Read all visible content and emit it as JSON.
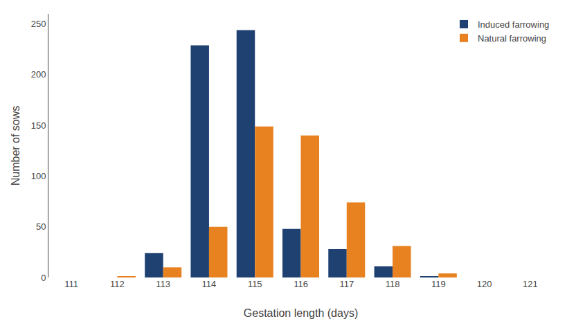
{
  "chart_data": {
    "type": "bar",
    "categories": [
      111,
      112,
      113,
      114,
      115,
      116,
      117,
      118,
      119,
      120,
      121
    ],
    "series": [
      {
        "name": "Induced farrowing",
        "color": "#1f4172",
        "values": [
          0,
          0,
          24,
          229,
          244,
          48,
          28,
          11,
          1,
          0,
          0
        ]
      },
      {
        "name": "Natural farrowing",
        "color": "#e88120",
        "values": [
          0,
          1,
          10,
          50,
          149,
          140,
          74,
          31,
          4,
          0,
          0
        ]
      }
    ],
    "xlabel": "Gestation length (days)",
    "ylabel": "Number of sows",
    "ylim": [
      0,
      260
    ],
    "yticks": [
      0,
      50,
      100,
      150,
      200,
      250
    ],
    "grid": false,
    "legend": "upper right"
  }
}
